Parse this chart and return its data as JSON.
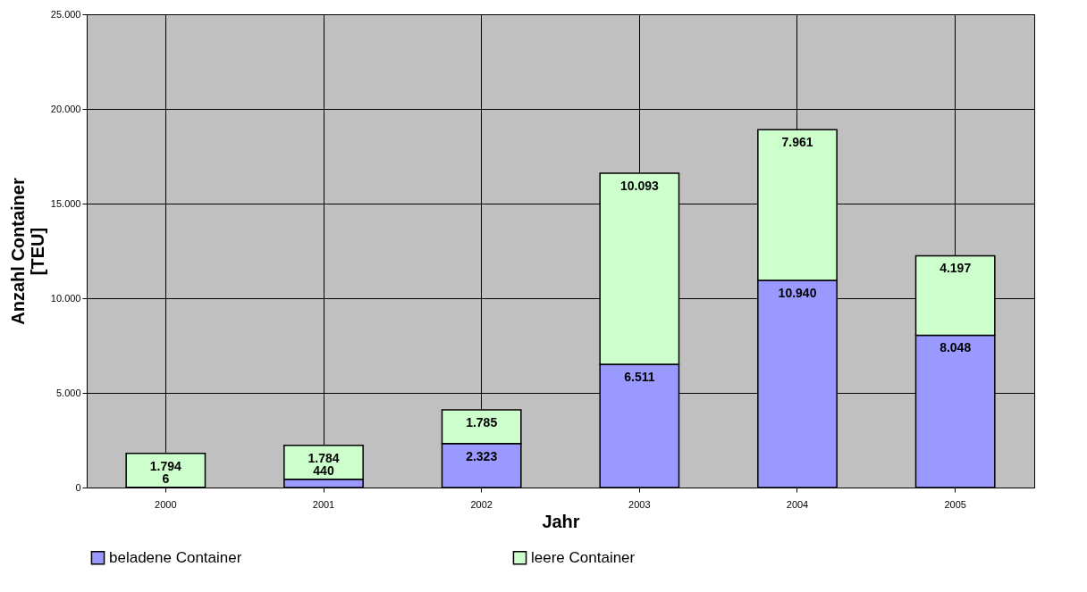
{
  "chart_data": {
    "type": "bar",
    "stacked": true,
    "xlabel": "Jahr",
    "ylabel": "Anzahl Container\n[TEU]",
    "categories": [
      "2000",
      "2001",
      "2002",
      "2003",
      "2004",
      "2005"
    ],
    "series": [
      {
        "name": "beladene Container",
        "color": "#9999ff",
        "values": [
          6,
          440,
          2323,
          6511,
          10940,
          8048
        ],
        "value_labels": [
          "6",
          "440",
          "2.323",
          "6.511",
          "10.940",
          "8.048"
        ]
      },
      {
        "name": "leere Container",
        "color": "#ccffcc",
        "values": [
          1794,
          1784,
          1785,
          10093,
          7961,
          4197
        ],
        "value_labels": [
          "1.794",
          "1.784",
          "1.785",
          "10.093",
          "7.961",
          "4.197"
        ]
      }
    ],
    "ylim": [
      0,
      25000
    ],
    "yticks": [
      {
        "value": 0,
        "label": "0"
      },
      {
        "value": 5000,
        "label": "5.000"
      },
      {
        "value": 10000,
        "label": "10.000"
      },
      {
        "value": 15000,
        "label": "15.000"
      },
      {
        "value": 20000,
        "label": "20.000"
      },
      {
        "value": 25000,
        "label": "25.000"
      }
    ],
    "grid": true,
    "legend": "bottom"
  }
}
